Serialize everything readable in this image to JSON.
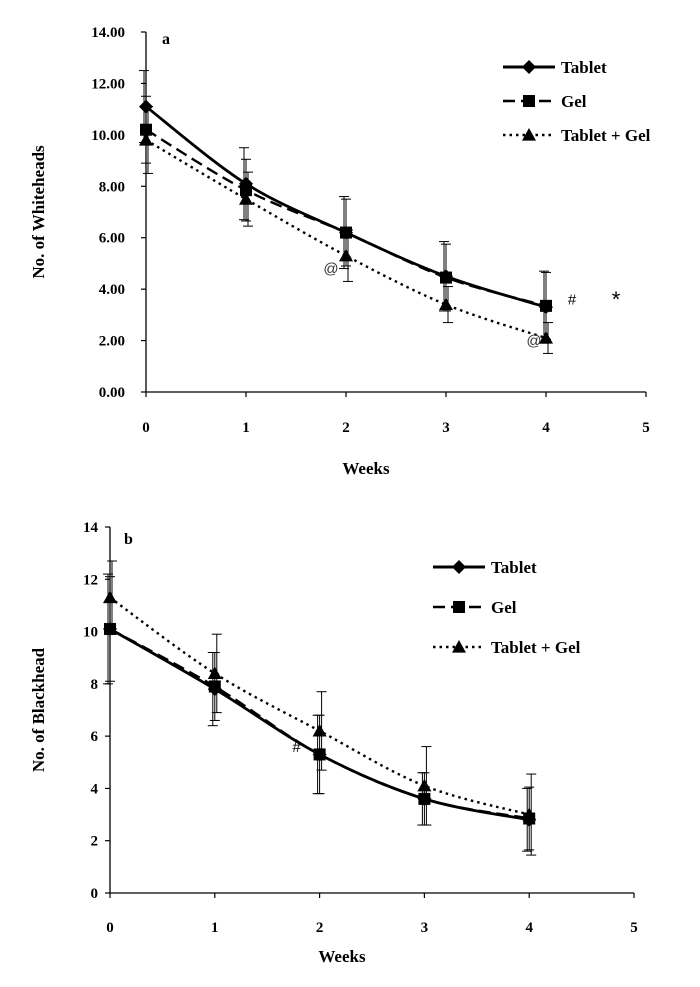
{
  "colors": {
    "ink": "#000000",
    "background": "#ffffff"
  },
  "chart_data": [
    {
      "type": "line",
      "panel_label": "a",
      "xlabel": "Weeks",
      "ylabel": "No. of Whiteheads",
      "xlim": [
        0,
        5
      ],
      "ylim": [
        0,
        14
      ],
      "x_ticks": [
        "0",
        "1",
        "2",
        "3",
        "4",
        "5"
      ],
      "y_ticks": [
        "0.00",
        "2.00",
        "4.00",
        "6.00",
        "8.00",
        "10.00",
        "12.00",
        "14.00"
      ],
      "grid": false,
      "legend_position": "top-right",
      "x": [
        0,
        1,
        2,
        3,
        4
      ],
      "series": [
        {
          "name": "Tablet",
          "marker": "diamond",
          "line": "solid",
          "values": [
            11.1,
            8.1,
            6.2,
            4.5,
            3.3
          ],
          "errors": [
            1.4,
            1.4,
            1.4,
            1.35,
            1.4
          ]
        },
        {
          "name": "Gel",
          "marker": "square",
          "line": "dashed",
          "values": [
            10.2,
            7.85,
            6.2,
            4.45,
            3.35
          ],
          "errors": [
            1.3,
            1.2,
            1.3,
            1.3,
            1.3
          ]
        },
        {
          "name": "Tablet + Gel",
          "marker": "triangle",
          "line": "dotted",
          "values": [
            9.8,
            7.5,
            5.3,
            3.4,
            2.1
          ],
          "errors": [
            1.3,
            1.05,
            1.0,
            0.7,
            0.6
          ]
        }
      ],
      "annotations": [
        {
          "text": "@",
          "x": 1.85,
          "y": 4.6
        },
        {
          "text": "@",
          "x": 3.88,
          "y": 1.8
        },
        {
          "text": "#",
          "x": 4.26,
          "y": 3.4
        },
        {
          "text": "*",
          "x": 4.7,
          "y": 3.3
        }
      ]
    },
    {
      "type": "line",
      "panel_label": "b",
      "xlabel": "Weeks",
      "ylabel": "No. of Blackhead",
      "xlim": [
        0,
        5
      ],
      "ylim": [
        0,
        14
      ],
      "x_ticks": [
        "0",
        "1",
        "2",
        "3",
        "4",
        "5"
      ],
      "y_ticks": [
        "0",
        "2",
        "4",
        "6",
        "8",
        "10",
        "12",
        "14"
      ],
      "grid": false,
      "legend_position": "top-right",
      "x": [
        0,
        1,
        2,
        3,
        4
      ],
      "series": [
        {
          "name": "Tablet",
          "marker": "diamond",
          "line": "solid",
          "values": [
            10.1,
            7.8,
            5.3,
            3.6,
            2.8
          ],
          "errors": [
            2.1,
            1.4,
            1.5,
            1.0,
            1.2
          ]
        },
        {
          "name": "Gel",
          "marker": "square",
          "line": "dashed",
          "values": [
            10.1,
            7.9,
            5.3,
            3.6,
            2.85
          ],
          "errors": [
            2.0,
            1.3,
            1.5,
            1.0,
            1.2
          ]
        },
        {
          "name": "Tablet + Gel",
          "marker": "triangle",
          "line": "dotted",
          "values": [
            11.3,
            8.4,
            6.2,
            4.1,
            3.0
          ],
          "errors": [
            1.4,
            1.5,
            1.5,
            1.5,
            1.55
          ]
        }
      ],
      "annotations": [
        {
          "text": "#",
          "x": 1.78,
          "y": 5.4
        }
      ]
    }
  ]
}
